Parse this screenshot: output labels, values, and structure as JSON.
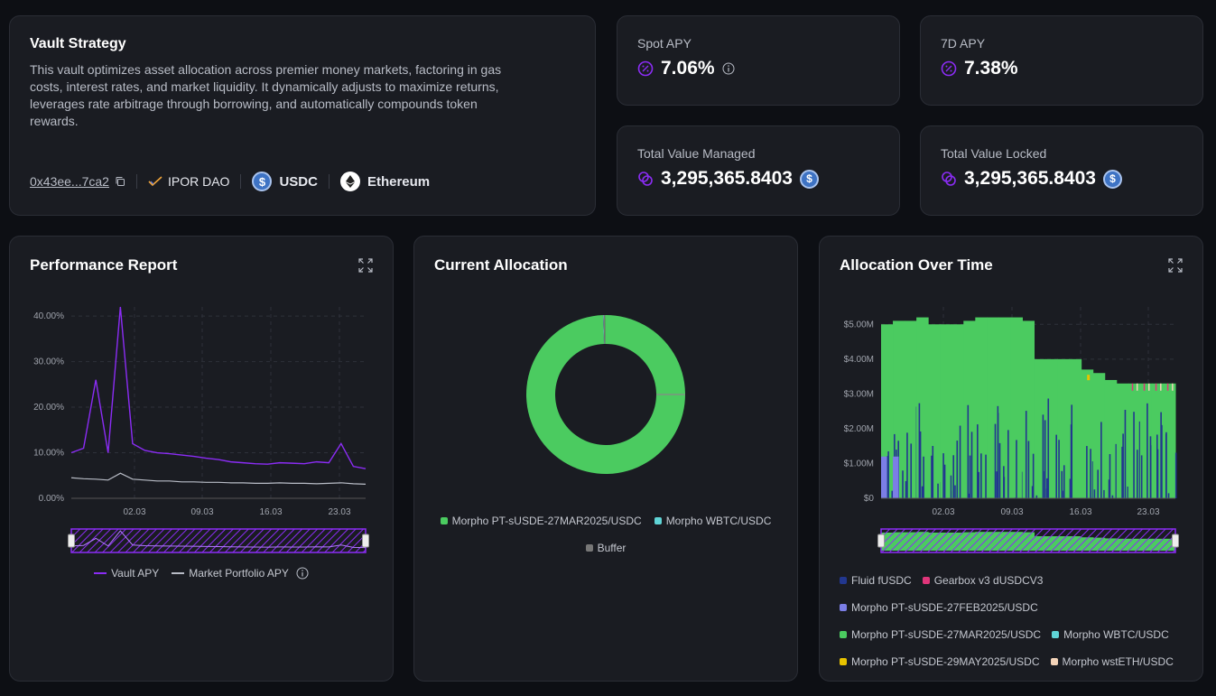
{
  "vault": {
    "title": "Vault Strategy",
    "description": "This vault optimizes asset allocation across premier money markets, factoring in gas costs, interest rates, and market liquidity. It dynamically adjusts to maximize returns, leverages rate arbitrage through borrowing, and automatically compounds token rewards.",
    "address": "0x43ee...7ca2",
    "curator": "IPOR DAO",
    "asset": "USDC",
    "network": "Ethereum"
  },
  "stats": {
    "spot_apy_label": "Spot APY",
    "spot_apy_value": "7.06%",
    "apy7d_label": "7D APY",
    "apy7d_value": "7.38%",
    "tvm_label": "Total Value Managed",
    "tvm_value": "3,295,365.8403",
    "tvl_label": "Total Value Locked",
    "tvl_value": "3,295,365.8403"
  },
  "performance": {
    "title": "Performance Report",
    "legend_vault": "Vault APY",
    "legend_market": "Market Portfolio APY"
  },
  "allocation": {
    "title": "Current Allocation",
    "legend": [
      "Morpho PT-sUSDE-27MAR2025/USDC",
      "Morpho WBTC/USDC",
      "Buffer"
    ]
  },
  "over_time": {
    "title": "Allocation Over Time",
    "legend": [
      "Fluid fUSDC",
      "Gearbox v3 dUSDCV3",
      "Morpho PT-sUSDE-27FEB2025/USDC",
      "Morpho PT-sUSDE-27MAR2025/USDC",
      "Morpho WBTC/USDC",
      "Morpho PT-sUSDE-29MAY2025/USDC",
      "Morpho wstETH/USDC"
    ]
  },
  "colors": {
    "accent": "#8b2cf5",
    "green": "#4bcb60",
    "navy": "#22378f",
    "pink": "#e0357a",
    "lavender": "#7b7ee6",
    "cyan": "#5fd4d6",
    "yellow": "#e8c300",
    "peach": "#f3d3b8",
    "buffer": "#777777"
  },
  "chart_data": [
    {
      "type": "line",
      "title": "Performance Report",
      "x_ticks": [
        "02.03",
        "09.03",
        "16.03",
        "23.03"
      ],
      "y_ticks": [
        "0.00%",
        "10.00%",
        "20.00%",
        "30.00%",
        "40.00%"
      ],
      "ylim": [
        0,
        42
      ],
      "x": [
        0,
        1,
        2,
        3,
        4,
        5,
        6,
        7,
        8,
        9,
        10,
        11,
        12,
        13,
        14,
        15,
        16,
        17,
        18,
        19,
        20,
        21,
        22,
        23,
        24
      ],
      "series": [
        {
          "name": "Vault APY",
          "values": [
            10,
            11,
            26,
            10,
            42,
            12,
            10.5,
            10,
            9.8,
            9.5,
            9.2,
            8.8,
            8.5,
            8.0,
            7.8,
            7.6,
            7.5,
            7.8,
            7.7,
            7.6,
            8.0,
            7.8,
            12,
            7.0,
            6.5
          ]
        },
        {
          "name": "Market Portfolio APY",
          "values": [
            4.5,
            4.3,
            4.2,
            4.0,
            5.5,
            4.2,
            4.0,
            3.8,
            3.8,
            3.6,
            3.6,
            3.5,
            3.5,
            3.4,
            3.4,
            3.3,
            3.3,
            3.4,
            3.3,
            3.3,
            3.2,
            3.3,
            3.4,
            3.2,
            3.1
          ]
        }
      ]
    },
    {
      "type": "pie",
      "title": "Current Allocation",
      "categories": [
        "Morpho PT-sUSDE-27MAR2025/USDC",
        "Morpho WBTC/USDC",
        "Buffer"
      ],
      "values": [
        99.6,
        0.1,
        0.3
      ]
    },
    {
      "type": "area",
      "title": "Allocation Over Time",
      "x_ticks": [
        "02.03",
        "09.03",
        "16.03",
        "23.03"
      ],
      "y_ticks": [
        "$0",
        "$1.00M",
        "$2.00M",
        "$3.00M",
        "$4.00M",
        "$5.00M"
      ],
      "ylim": [
        0,
        5.5
      ],
      "total_millions": [
        5.0,
        5.1,
        5.1,
        5.2,
        5.0,
        5.0,
        5.0,
        5.1,
        5.2,
        5.2,
        5.2,
        5.2,
        5.1,
        4.0,
        4.0,
        4.0,
        4.0,
        3.7,
        3.6,
        3.4,
        3.3,
        3.3,
        3.3,
        3.3,
        3.3
      ]
    }
  ]
}
